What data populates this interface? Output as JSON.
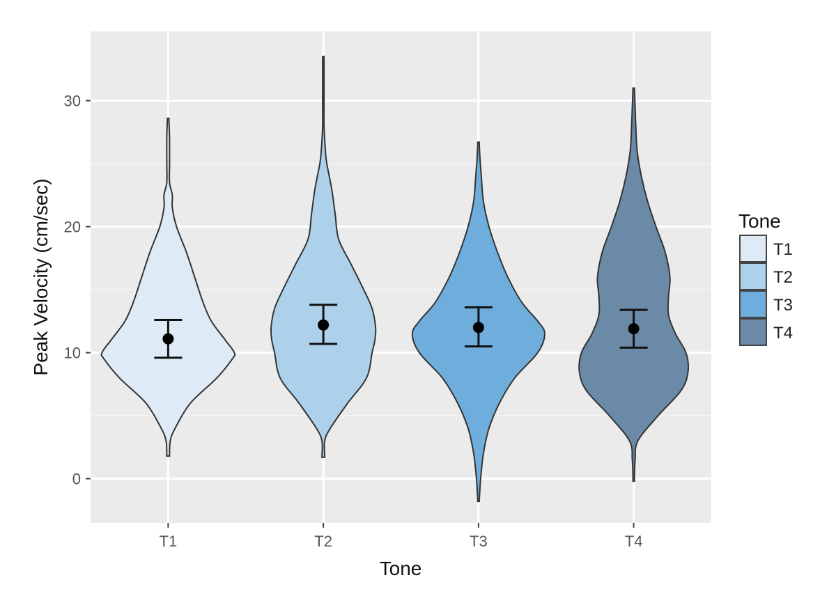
{
  "chart_data": {
    "type": "violin",
    "xlabel": "Tone",
    "ylabel": "Peak Velocity (cm/sec)",
    "categories": [
      "T1",
      "T2",
      "T3",
      "T4"
    ],
    "ylim": [
      -3.5,
      35.5
    ],
    "yticks": [
      0,
      10,
      20,
      30
    ],
    "grid": true,
    "legend": {
      "title": "Tone",
      "position": "right",
      "entries": [
        "T1",
        "T2",
        "T3",
        "T4"
      ]
    },
    "series": [
      {
        "category": "T1",
        "color": "#deebf7",
        "mean": 11.1,
        "ci_low": 9.6,
        "ci_high": 12.6,
        "profile": [
          [
            1.8,
            0.02
          ],
          [
            3,
            0.03
          ],
          [
            4,
            0.1
          ],
          [
            6,
            0.32
          ],
          [
            8,
            0.7
          ],
          [
            9.5,
            0.92
          ],
          [
            10,
            0.95
          ],
          [
            11,
            0.82
          ],
          [
            12.5,
            0.62
          ],
          [
            14,
            0.5
          ],
          [
            16,
            0.38
          ],
          [
            18,
            0.26
          ],
          [
            20,
            0.12
          ],
          [
            21.5,
            0.06
          ],
          [
            22.5,
            0.06
          ],
          [
            23.5,
            0.02
          ],
          [
            25,
            0.02
          ],
          [
            27,
            0.02
          ],
          [
            28.6,
            0.01
          ]
        ]
      },
      {
        "category": "T2",
        "color": "#aed1eb",
        "mean": 12.2,
        "ci_low": 10.7,
        "ci_high": 13.8,
        "profile": [
          [
            1.7,
            0.02
          ],
          [
            3,
            0.02
          ],
          [
            4,
            0.1
          ],
          [
            6,
            0.35
          ],
          [
            8,
            0.62
          ],
          [
            10,
            0.7
          ],
          [
            11,
            0.74
          ],
          [
            12,
            0.75
          ],
          [
            13.5,
            0.7
          ],
          [
            15,
            0.58
          ],
          [
            17,
            0.4
          ],
          [
            19,
            0.22
          ],
          [
            21,
            0.17
          ],
          [
            23,
            0.12
          ],
          [
            25,
            0.05
          ],
          [
            26,
            0.03
          ],
          [
            28,
            0.01
          ],
          [
            30,
            0.01
          ],
          [
            33.5,
            0.01
          ]
        ]
      },
      {
        "category": "T3",
        "color": "#6faedc",
        "mean": 12.0,
        "ci_low": 10.5,
        "ci_high": 13.6,
        "profile": [
          [
            -1.8,
            0.01
          ],
          [
            0,
            0.03
          ],
          [
            2,
            0.07
          ],
          [
            4,
            0.15
          ],
          [
            6,
            0.3
          ],
          [
            8,
            0.52
          ],
          [
            10,
            0.85
          ],
          [
            11.5,
            0.95
          ],
          [
            12.5,
            0.85
          ],
          [
            14,
            0.62
          ],
          [
            16,
            0.42
          ],
          [
            18,
            0.27
          ],
          [
            20,
            0.15
          ],
          [
            22,
            0.07
          ],
          [
            24,
            0.04
          ],
          [
            25.5,
            0.02
          ],
          [
            26.7,
            0.01
          ]
        ]
      },
      {
        "category": "T4",
        "color": "#6b8aa8",
        "mean": 11.9,
        "ci_low": 10.4,
        "ci_high": 13.4,
        "profile": [
          [
            -0.2,
            0.01
          ],
          [
            1.5,
            0.02
          ],
          [
            3,
            0.06
          ],
          [
            5,
            0.35
          ],
          [
            7,
            0.68
          ],
          [
            8.5,
            0.78
          ],
          [
            10,
            0.75
          ],
          [
            11.5,
            0.6
          ],
          [
            13,
            0.5
          ],
          [
            14.5,
            0.5
          ],
          [
            16,
            0.52
          ],
          [
            18,
            0.45
          ],
          [
            20,
            0.32
          ],
          [
            22,
            0.2
          ],
          [
            24,
            0.11
          ],
          [
            26,
            0.05
          ],
          [
            28,
            0.03
          ],
          [
            29.5,
            0.02
          ],
          [
            31,
            0.01
          ]
        ]
      }
    ]
  }
}
